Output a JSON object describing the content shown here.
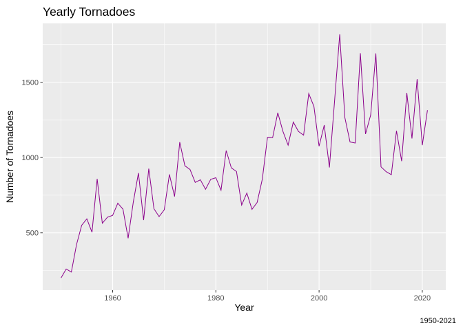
{
  "chart_data": {
    "type": "line",
    "title": "Yearly Tornadoes",
    "xlabel": "Year",
    "ylabel": "Number of Tornadoes",
    "caption": "1950-2021",
    "xlim": [
      1946.45,
      2024.55
    ],
    "ylim": [
      120,
      1890
    ],
    "x_ticks": [
      1960,
      1980,
      2000,
      2020
    ],
    "y_ticks": [
      500,
      1000,
      1500
    ],
    "grid": true,
    "legend": "none",
    "colors": {
      "line": "#8b008b",
      "panel": "#ebebeb",
      "grid_major": "#ffffff"
    },
    "series": [
      {
        "x": [
          1950,
          1951,
          1952,
          1953,
          1954,
          1955,
          1956,
          1957,
          1958,
          1959,
          1960,
          1961,
          1962,
          1963,
          1964,
          1965,
          1966,
          1967,
          1968,
          1969,
          1970,
          1971,
          1972,
          1973,
          1974,
          1975,
          1976,
          1977,
          1978,
          1979,
          1980,
          1981,
          1982,
          1983,
          1984,
          1985,
          1986,
          1987,
          1988,
          1989,
          1990,
          1991,
          1992,
          1993,
          1994,
          1995,
          1996,
          1997,
          1998,
          1999,
          2000,
          2001,
          2002,
          2003,
          2004,
          2005,
          2006,
          2007,
          2008,
          2009,
          2010,
          2011,
          2012,
          2013,
          2014,
          2015,
          2016,
          2017,
          2018,
          2019,
          2020,
          2021
        ],
        "values": [
          201,
          260,
          240,
          422,
          550,
          593,
          504,
          858,
          564,
          604,
          616,
          697,
          657,
          464,
          704,
          897,
          585,
          926,
          660,
          608,
          653,
          888,
          741,
          1102,
          945,
          920,
          835,
          852,
          789,
          855,
          866,
          783,
          1046,
          931,
          907,
          684,
          764,
          656,
          702,
          856,
          1133,
          1132,
          1297,
          1173,
          1082,
          1235,
          1173,
          1148,
          1424,
          1339,
          1075,
          1215,
          934,
          1374,
          1817,
          1264,
          1103,
          1096,
          1692,
          1156,
          1282,
          1691,
          938,
          906,
          886,
          1177,
          976,
          1429,
          1126,
          1520,
          1082,
          1314
        ]
      }
    ]
  }
}
